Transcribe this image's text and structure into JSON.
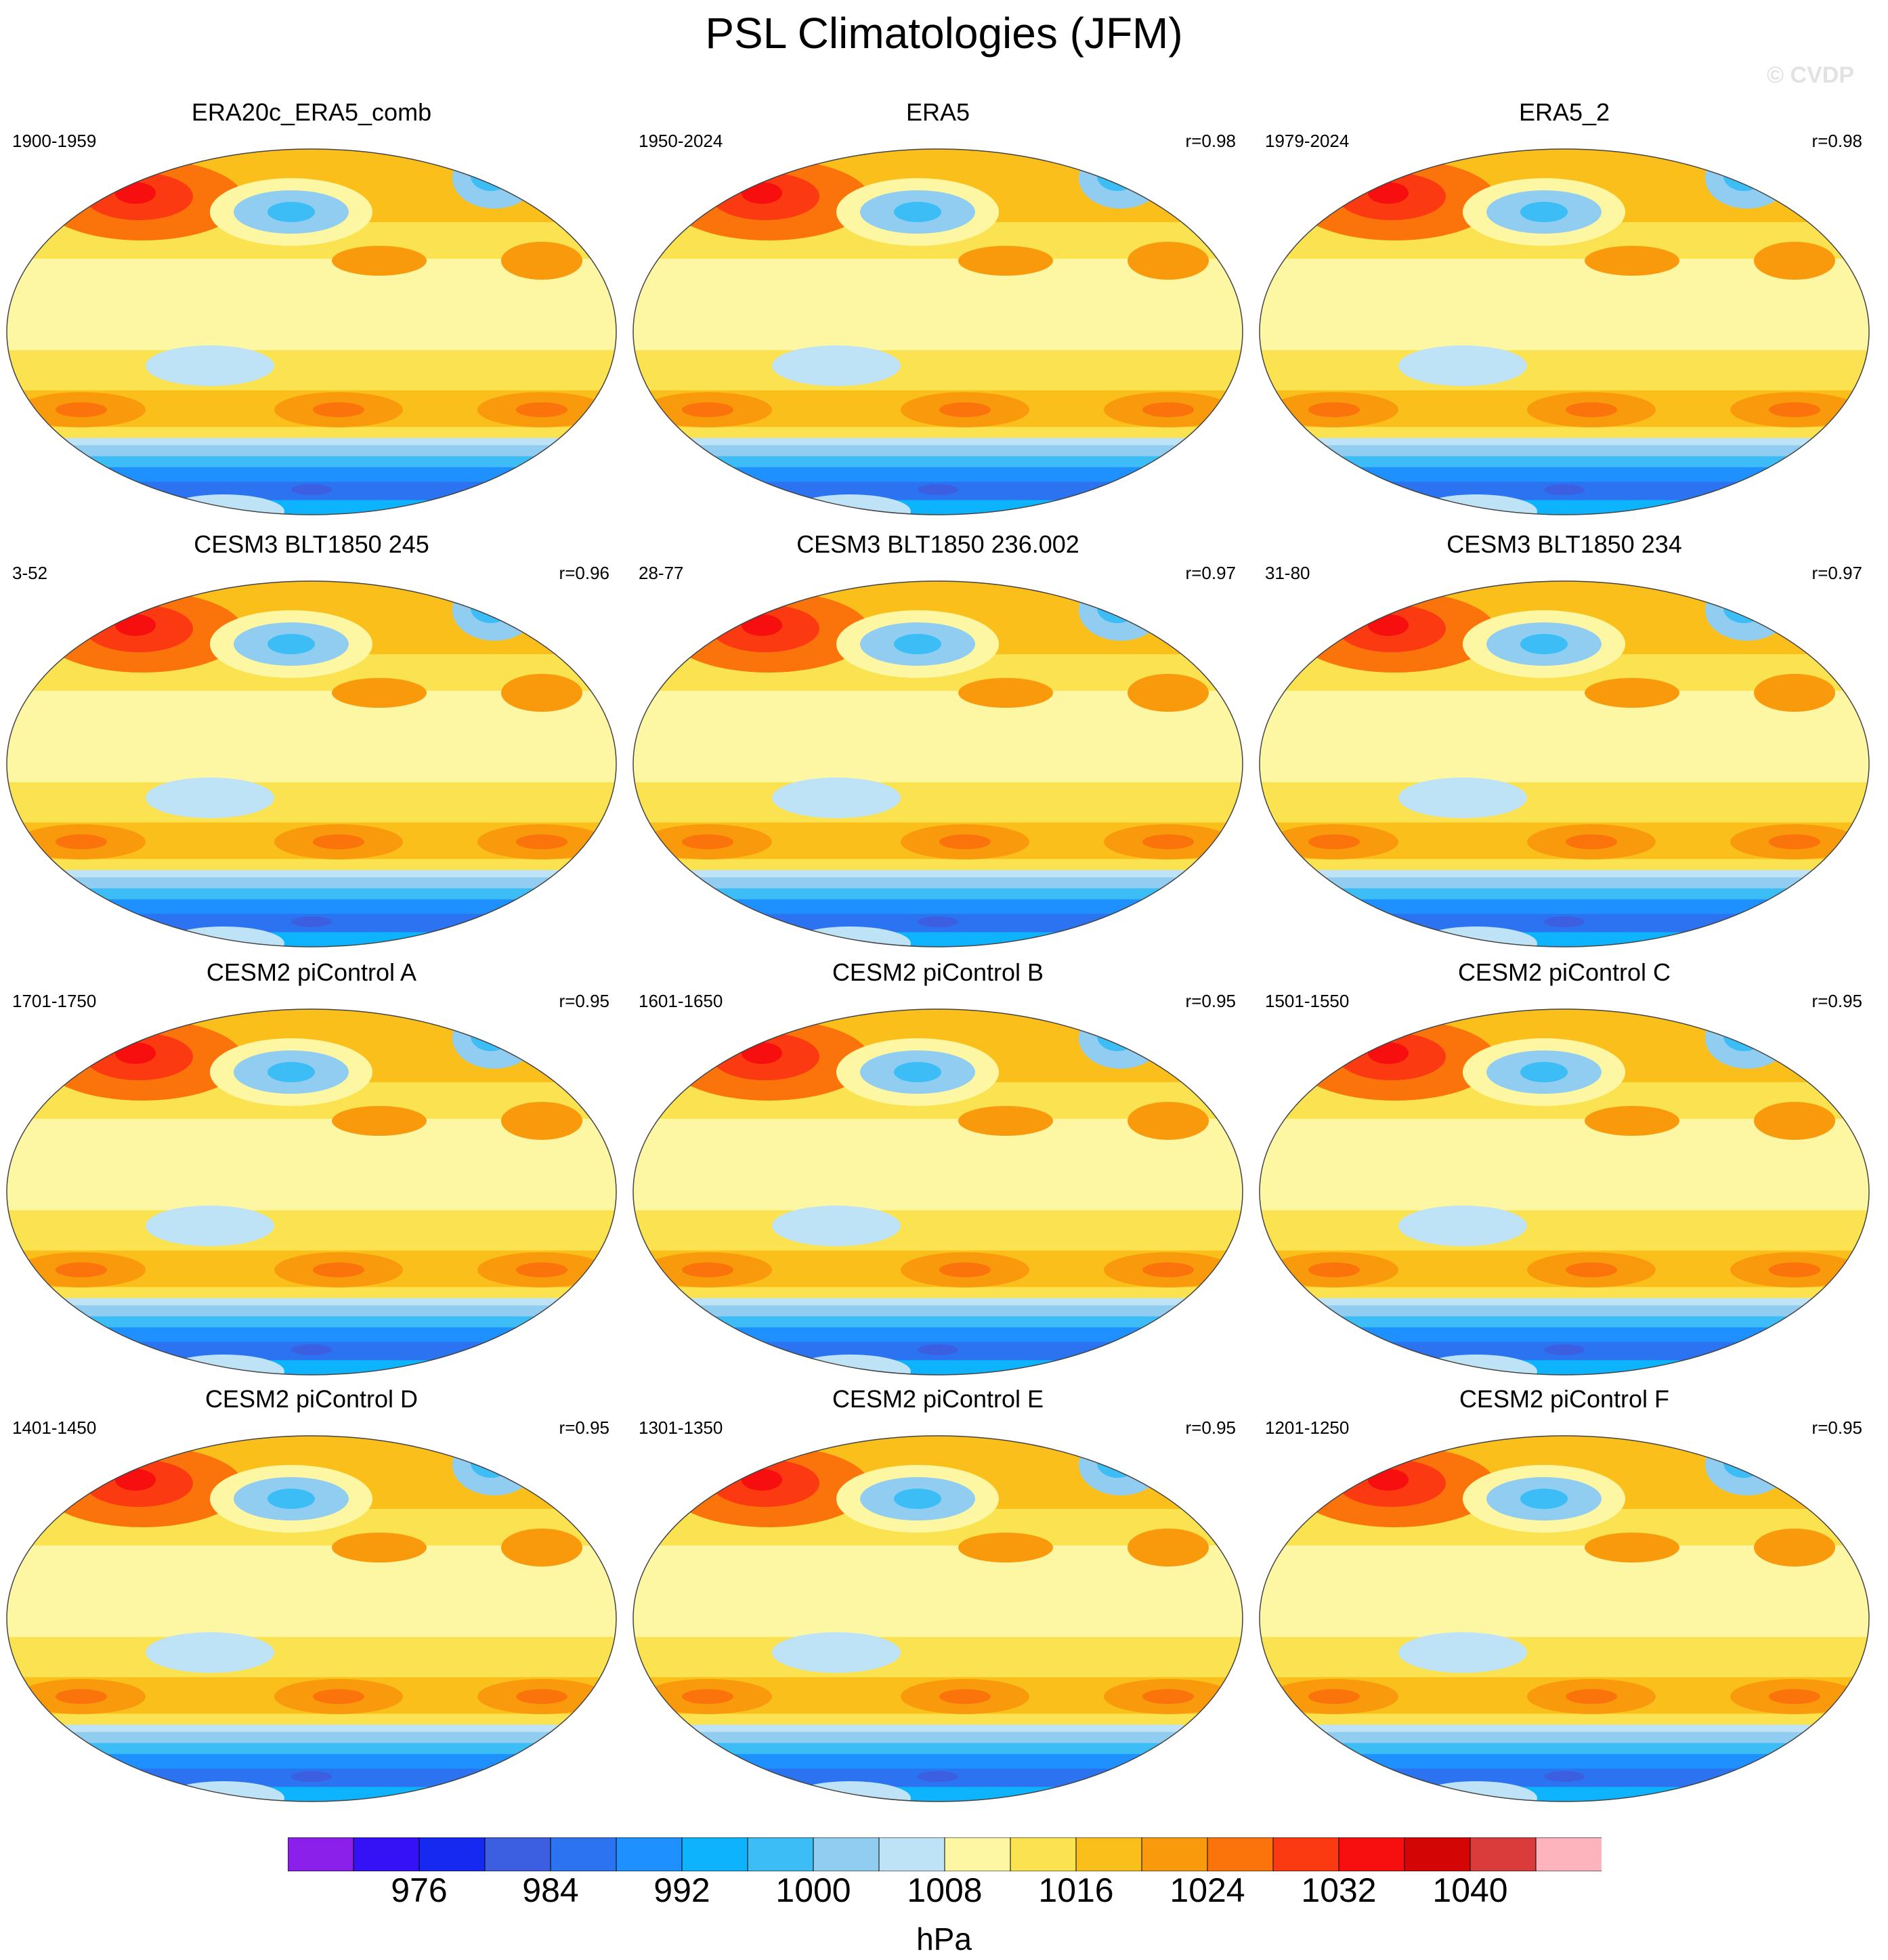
{
  "title": "PSL Climatologies (JFM)",
  "watermark": "© CVDP",
  "units": "hPa",
  "colorbar": {
    "colors": [
      "#8a20ea",
      "#3512f5",
      "#1629f0",
      "#3b5fe0",
      "#2b73f0",
      "#1e90ff",
      "#0db4fd",
      "#3cbdf6",
      "#91cdf0",
      "#bee3f7",
      "#fdf7a4",
      "#fbe250",
      "#fbbf1c",
      "#f99a0c",
      "#fb730b",
      "#fb3a12",
      "#f70e0e",
      "#d30505",
      "#da3c3c",
      "#fdb4bc"
    ],
    "tick_labels": [
      "976",
      "984",
      "992",
      "1000",
      "1008",
      "1016",
      "1024",
      "1032",
      "1040"
    ]
  },
  "panels": [
    {
      "title": "ERA20c_ERA5_comb",
      "period": "1900-1959",
      "r": ""
    },
    {
      "title": "ERA5",
      "period": "1950-2024",
      "r": "r=0.98"
    },
    {
      "title": "ERA5_2",
      "period": "1979-2024",
      "r": "r=0.98"
    },
    {
      "title": "CESM3 BLT1850 245",
      "period": "3-52",
      "r": "r=0.96"
    },
    {
      "title": "CESM3 BLT1850 236.002",
      "period": "28-77",
      "r": "r=0.97"
    },
    {
      "title": "CESM3 BLT1850 234",
      "period": "31-80",
      "r": "r=0.97"
    },
    {
      "title": "CESM2 piControl A",
      "period": "1701-1750",
      "r": "r=0.95"
    },
    {
      "title": "CESM2 piControl B",
      "period": "1601-1650",
      "r": "r=0.95"
    },
    {
      "title": "CESM2 piControl C",
      "period": "1501-1550",
      "r": "r=0.95"
    },
    {
      "title": "CESM2 piControl D",
      "period": "1401-1450",
      "r": "r=0.95"
    },
    {
      "title": "CESM2 piControl E",
      "period": "1301-1350",
      "r": "r=0.95"
    },
    {
      "title": "CESM2 piControl F",
      "period": "1201-1250",
      "r": "r=0.95"
    }
  ]
}
